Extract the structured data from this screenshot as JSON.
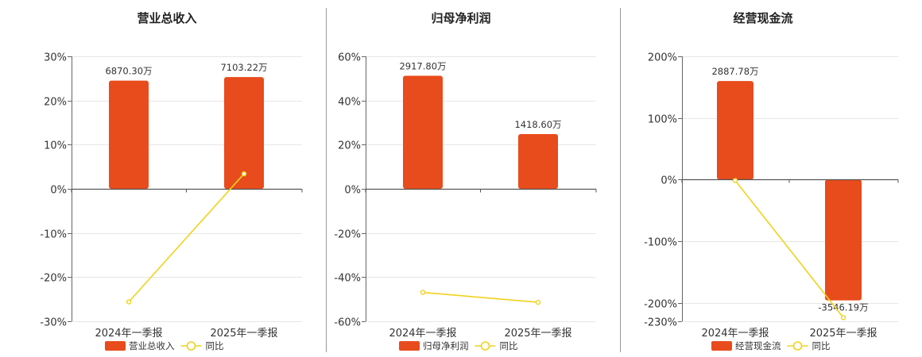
{
  "chart_data": [
    {
      "type": "bar",
      "title": "营业总收入",
      "categories": [
        "2024年一季报",
        "2025年一季报"
      ],
      "y_ticks": [
        "30%",
        "20%",
        "10%",
        "0%",
        "-10%",
        "-20%",
        "-30%"
      ],
      "ylim": [
        -30,
        30
      ],
      "series": [
        {
          "name": "营业总收入",
          "kind": "bar",
          "values": [
            24.5,
            25.3
          ],
          "labels": [
            "6870.30万",
            "7103.22万"
          ],
          "color": "#e84c1c"
        },
        {
          "name": "同比",
          "kind": "line",
          "values": [
            -25.6,
            3.4
          ],
          "color": "#f2d21c"
        }
      ],
      "grid": true,
      "legend_position": "bottom"
    },
    {
      "type": "bar",
      "title": "归母净利润",
      "categories": [
        "2024年一季报",
        "2025年一季报"
      ],
      "y_ticks": [
        "60%",
        "40%",
        "20%",
        "0%",
        "-20%",
        "-40%",
        "-60%"
      ],
      "ylim": [
        -60,
        60
      ],
      "series": [
        {
          "name": "归母净利润",
          "kind": "bar",
          "values": [
            51.2,
            24.8
          ],
          "labels": [
            "2917.80万",
            "1418.60万"
          ],
          "color": "#e84c1c"
        },
        {
          "name": "同比",
          "kind": "line",
          "values": [
            -46.9,
            -51.4
          ],
          "color": "#f2d21c"
        }
      ],
      "grid": true,
      "legend_position": "bottom"
    },
    {
      "type": "bar",
      "title": "经营现金流",
      "categories": [
        "2024年一季报",
        "2025年一季报"
      ],
      "y_ticks": [
        "200%",
        "100%",
        "0%",
        "-100%",
        "-200%",
        "-230%"
      ],
      "y_tick_values": [
        200,
        100,
        0,
        -100,
        -200,
        -230
      ],
      "ylim": [
        -230,
        200
      ],
      "series": [
        {
          "name": "经营现金流",
          "kind": "bar",
          "values": [
            160,
            -196
          ],
          "labels": [
            "2887.78万",
            "-3546.19万"
          ],
          "color": "#e84c1c"
        },
        {
          "name": "同比",
          "kind": "line",
          "values": [
            -1.5,
            -224
          ],
          "color": "#f2d21c"
        }
      ],
      "grid": true,
      "legend_position": "bottom"
    }
  ]
}
